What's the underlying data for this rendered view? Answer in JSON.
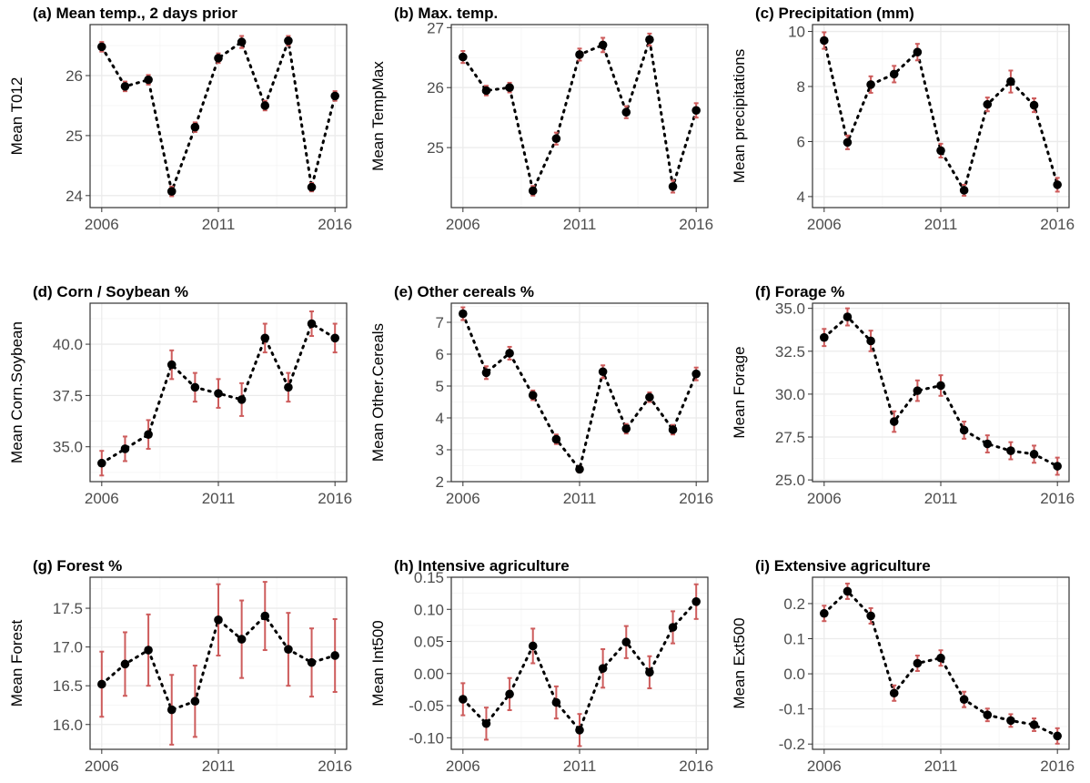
{
  "figure": {
    "colors": {
      "point": "#000000",
      "errorbar": "#cd5c5c",
      "panel_border": "#333333",
      "grid_major": "#ebebeb",
      "grid_minor": "#f4f4f4",
      "tick_text": "#4d4d4d"
    }
  },
  "chart_data": [
    {
      "type": "scatter",
      "title": "(a) Mean temp., 2 days prior",
      "xlabel": "",
      "ylabel": "Mean T012",
      "x": [
        2006,
        2007,
        2008,
        2009,
        2010,
        2011,
        2012,
        2013,
        2014,
        2015,
        2016
      ],
      "y": [
        26.48,
        25.82,
        25.93,
        24.07,
        25.14,
        26.29,
        26.56,
        25.5,
        26.58,
        24.14,
        25.66
      ],
      "err": [
        0.08,
        0.08,
        0.08,
        0.08,
        0.08,
        0.08,
        0.1,
        0.08,
        0.08,
        0.07,
        0.08
      ],
      "xlim": [
        2005.5,
        2016.5
      ],
      "ylim": [
        23.8,
        26.85
      ],
      "xticks": [
        "2006",
        "2011",
        "2016"
      ],
      "yticks": [
        "24",
        "25",
        "26"
      ],
      "connector": "dotted",
      "grid": true
    },
    {
      "type": "scatter",
      "title": "(b) Max. temp.",
      "xlabel": "",
      "ylabel": "Mean TempMax",
      "x": [
        2006,
        2007,
        2008,
        2009,
        2010,
        2011,
        2012,
        2013,
        2014,
        2015,
        2016
      ],
      "y": [
        26.51,
        25.95,
        26.0,
        24.28,
        25.15,
        26.55,
        26.71,
        25.59,
        26.8,
        24.35,
        25.62
      ],
      "err": [
        0.1,
        0.08,
        0.08,
        0.08,
        0.1,
        0.1,
        0.12,
        0.1,
        0.1,
        0.1,
        0.12
      ],
      "xlim": [
        2005.5,
        2016.5
      ],
      "ylim": [
        24.0,
        27.05
      ],
      "xticks": [
        "2006",
        "2011",
        "2016"
      ],
      "yticks": [
        "25",
        "26",
        "27"
      ],
      "connector": "dotted",
      "grid": true
    },
    {
      "type": "scatter",
      "title": "(c) Precipitation (mm)",
      "xlabel": "",
      "ylabel": "Mean precipitations",
      "x": [
        2006,
        2007,
        2008,
        2009,
        2010,
        2011,
        2012,
        2013,
        2014,
        2015,
        2016
      ],
      "y": [
        9.67,
        5.97,
        8.07,
        8.45,
        9.25,
        5.67,
        4.23,
        7.35,
        8.18,
        7.32,
        4.43
      ],
      "err": [
        0.3,
        0.25,
        0.3,
        0.3,
        0.3,
        0.25,
        0.2,
        0.25,
        0.4,
        0.25,
        0.25
      ],
      "xlim": [
        2005.5,
        2016.5
      ],
      "ylim": [
        3.6,
        10.25
      ],
      "xticks": [
        "2006",
        "2011",
        "2016"
      ],
      "yticks": [
        "4",
        "6",
        "8",
        "10"
      ],
      "connector": "dotted",
      "grid": true
    },
    {
      "type": "scatter",
      "title": "(d) Corn / Soybean %",
      "xlabel": "",
      "ylabel": "Mean Corn.Soybean",
      "x": [
        2006,
        2007,
        2008,
        2009,
        2010,
        2011,
        2012,
        2013,
        2014,
        2015,
        2016
      ],
      "y": [
        34.2,
        34.9,
        35.6,
        39.0,
        37.9,
        37.6,
        37.3,
        40.3,
        37.9,
        41.0,
        40.3
      ],
      "err": [
        0.6,
        0.6,
        0.7,
        0.7,
        0.7,
        0.7,
        0.8,
        0.7,
        0.7,
        0.6,
        0.7
      ],
      "xlim": [
        2005.5,
        2016.5
      ],
      "ylim": [
        33.3,
        42.0
      ],
      "xticks": [
        "2006",
        "2011",
        "2016"
      ],
      "yticks": [
        "35.0",
        "37.5",
        "40.0"
      ],
      "connector": "dotted",
      "grid": true
    },
    {
      "type": "scatter",
      "title": "(e) Other cereals %",
      "xlabel": "",
      "ylabel": "Mean Other.Cereals",
      "x": [
        2006,
        2007,
        2008,
        2009,
        2010,
        2011,
        2012,
        2013,
        2014,
        2015,
        2016
      ],
      "y": [
        7.27,
        5.42,
        6.03,
        4.71,
        3.33,
        2.39,
        5.45,
        3.66,
        4.65,
        3.63,
        5.38
      ],
      "err": [
        0.2,
        0.2,
        0.2,
        0.15,
        0.15,
        0.1,
        0.2,
        0.15,
        0.15,
        0.15,
        0.2
      ],
      "xlim": [
        2005.5,
        2016.5
      ],
      "ylim": [
        2.0,
        7.6
      ],
      "xticks": [
        "2006",
        "2011",
        "2016"
      ],
      "yticks": [
        "2",
        "3",
        "4",
        "5",
        "6",
        "7"
      ],
      "connector": "dotted",
      "grid": true
    },
    {
      "type": "scatter",
      "title": "(f) Forage %",
      "xlabel": "",
      "ylabel": "Mean Forage",
      "x": [
        2006,
        2007,
        2008,
        2009,
        2010,
        2011,
        2012,
        2013,
        2014,
        2015,
        2016
      ],
      "y": [
        33.3,
        34.5,
        33.1,
        28.4,
        30.2,
        30.5,
        27.9,
        27.1,
        26.7,
        26.5,
        25.8
      ],
      "err": [
        0.5,
        0.5,
        0.6,
        0.6,
        0.6,
        0.6,
        0.5,
        0.5,
        0.5,
        0.5,
        0.5
      ],
      "xlim": [
        2005.5,
        2016.5
      ],
      "ylim": [
        24.9,
        35.3
      ],
      "xticks": [
        "2006",
        "2011",
        "2016"
      ],
      "yticks": [
        "25.0",
        "27.5",
        "30.0",
        "32.5",
        "35.0"
      ],
      "connector": "dotted",
      "grid": true
    },
    {
      "type": "scatter",
      "title": "(g) Forest %",
      "xlabel": "",
      "ylabel": "Mean Forest",
      "x": [
        2006,
        2007,
        2008,
        2009,
        2010,
        2011,
        2012,
        2013,
        2014,
        2015,
        2016
      ],
      "y": [
        16.52,
        16.78,
        16.96,
        16.19,
        16.3,
        17.35,
        17.1,
        17.4,
        16.97,
        16.8,
        16.89
      ],
      "err": [
        0.42,
        0.41,
        0.46,
        0.45,
        0.46,
        0.46,
        0.5,
        0.44,
        0.47,
        0.44,
        0.47
      ],
      "xlim": [
        2005.5,
        2016.5
      ],
      "ylim": [
        15.68,
        17.9
      ],
      "xticks": [
        "2006",
        "2011",
        "2016"
      ],
      "yticks": [
        "16.0",
        "16.5",
        "17.0",
        "17.5"
      ],
      "connector": "dotted",
      "grid": true
    },
    {
      "type": "scatter",
      "title": "(h) Intensive agriculture",
      "xlabel": "",
      "ylabel": "Mean Int500",
      "x": [
        2006,
        2007,
        2008,
        2009,
        2010,
        2011,
        2012,
        2013,
        2014,
        2015,
        2016
      ],
      "y": [
        -0.04,
        -0.078,
        -0.032,
        0.043,
        -0.045,
        -0.088,
        0.008,
        0.049,
        0.002,
        0.072,
        0.112
      ],
      "err": [
        0.025,
        0.025,
        0.025,
        0.027,
        0.025,
        0.025,
        0.03,
        0.025,
        0.025,
        0.025,
        0.027
      ],
      "xlim": [
        2005.5,
        2016.5
      ],
      "ylim": [
        -0.118,
        0.15
      ],
      "xticks": [
        "2006",
        "2011",
        "2016"
      ],
      "yticks": [
        "-0.10",
        "-0.05",
        "0.00",
        "0.05",
        "0.10",
        "0.15"
      ],
      "connector": "dotted",
      "grid": true
    },
    {
      "type": "scatter",
      "title": "(i) Extensive agriculture",
      "xlabel": "",
      "ylabel": "Mean Ext500",
      "x": [
        2006,
        2007,
        2008,
        2009,
        2010,
        2011,
        2012,
        2013,
        2014,
        2015,
        2016
      ],
      "y": [
        0.172,
        0.235,
        0.165,
        -0.055,
        0.03,
        0.045,
        -0.073,
        -0.117,
        -0.133,
        -0.145,
        -0.177
      ],
      "err": [
        0.022,
        0.022,
        0.022,
        0.022,
        0.022,
        0.022,
        0.022,
        0.018,
        0.018,
        0.018,
        0.022
      ],
      "xlim": [
        2005.5,
        2016.5
      ],
      "ylim": [
        -0.215,
        0.275
      ],
      "xticks": [
        "2006",
        "2011",
        "2016"
      ],
      "yticks": [
        "-0.2",
        "-0.1",
        "0.0",
        "0.1",
        "0.2"
      ],
      "connector": "dotted",
      "grid": true
    }
  ]
}
